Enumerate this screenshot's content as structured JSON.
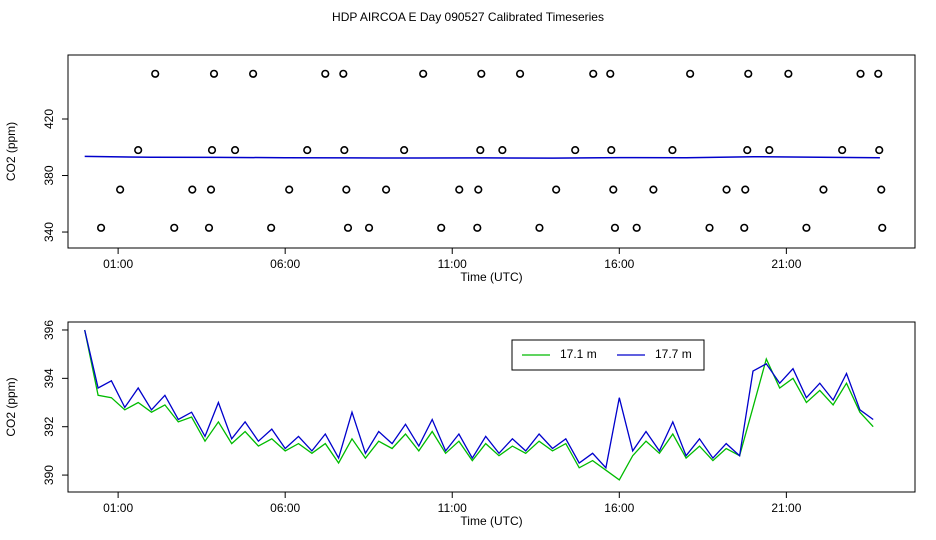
{
  "title": "HDP AIRCOA E  Day 090527  Calibrated Timeseries",
  "chart_data": [
    {
      "type": "scatter",
      "xlabel": "Time (UTC)",
      "ylabel": "CO2 (ppm)",
      "xlim": [
        -0.5,
        24.85
      ],
      "ylim": [
        328.7,
        465.3
      ],
      "xticks": [
        {
          "value": 1,
          "label": "01:00"
        },
        {
          "value": 6,
          "label": "06:00"
        },
        {
          "value": 11,
          "label": "11:00"
        },
        {
          "value": 16,
          "label": "16:00"
        },
        {
          "value": 21,
          "label": "21:00"
        }
      ],
      "yticks": [
        340,
        380,
        420
      ],
      "marker_color": "#000000",
      "x": [
        2.11,
        3.87,
        5.04,
        7.2,
        7.74,
        10.13,
        11.87,
        13.03,
        15.22,
        15.73,
        18.12,
        19.86,
        21.06,
        23.22,
        23.75,
        1.6,
        3.81,
        4.5,
        6.66,
        7.77,
        9.56,
        11.84,
        12.5,
        14.68,
        15.76,
        17.59,
        19.83,
        20.49,
        22.67,
        23.78,
        1.06,
        3.22,
        3.78,
        6.12,
        7.83,
        9.02,
        11.21,
        11.78,
        14.11,
        15.82,
        17.02,
        19.21,
        19.77,
        22.11,
        23.84,
        0.49,
        2.68,
        3.72,
        5.58,
        7.88,
        8.51,
        10.67,
        11.75,
        13.61,
        15.87,
        16.52,
        18.7,
        19.74,
        21.6,
        23.87
      ],
      "values": [
        452,
        452,
        452,
        452,
        452,
        452,
        452,
        452,
        452,
        452,
        452,
        452,
        452,
        452,
        452,
        398,
        398,
        398,
        398,
        398,
        398,
        398,
        398,
        398,
        398,
        398,
        398,
        398,
        398,
        398,
        370,
        370,
        370,
        370,
        370,
        370,
        370,
        370,
        370,
        370,
        370,
        370,
        370,
        370,
        370,
        343,
        343,
        343,
        343,
        343,
        343,
        343,
        343,
        343,
        343,
        343,
        343,
        343,
        343,
        343
      ],
      "line_color": "#0000cc",
      "line_x": [
        0,
        2,
        4,
        6,
        8,
        10,
        12,
        14,
        16,
        18,
        20,
        22,
        23.8
      ],
      "line_values": [
        393.5,
        392.9,
        392.8,
        392.6,
        392.5,
        392.4,
        392.5,
        392.3,
        392.7,
        392.6,
        393.3,
        392.9,
        392.6
      ]
    },
    {
      "type": "line",
      "xlabel": "Time (UTC)",
      "ylabel": "CO2 (ppm)",
      "xlim": [
        -0.5,
        24.85
      ],
      "ylim": [
        389.3,
        396.33
      ],
      "xticks": [
        {
          "value": 1,
          "label": "01:00"
        },
        {
          "value": 6,
          "label": "06:00"
        },
        {
          "value": 11,
          "label": "11:00"
        },
        {
          "value": 16,
          "label": "16:00"
        },
        {
          "value": 21,
          "label": "21:00"
        }
      ],
      "yticks": [
        390,
        392,
        394,
        396
      ],
      "legend": "top",
      "x": [
        0,
        0.4,
        0.8,
        1.2,
        1.6,
        2.0,
        2.4,
        2.8,
        3.2,
        3.6,
        4.0,
        4.4,
        4.8,
        5.2,
        5.6,
        6.0,
        6.4,
        6.8,
        7.2,
        7.6,
        8.0,
        8.4,
        8.8,
        9.2,
        9.6,
        10.0,
        10.4,
        10.8,
        11.2,
        11.6,
        12.0,
        12.4,
        12.8,
        13.2,
        13.6,
        14.0,
        14.4,
        14.8,
        15.2,
        15.6,
        16.0,
        16.4,
        16.8,
        17.2,
        17.6,
        18.0,
        18.4,
        18.8,
        19.2,
        19.6,
        20.0,
        20.4,
        20.8,
        21.2,
        21.6,
        22.0,
        22.4,
        22.8,
        23.2,
        23.6
      ],
      "series": [
        {
          "name": "17.1 m",
          "color": "#00bb00",
          "values": [
            396.0,
            393.3,
            393.2,
            392.7,
            393.0,
            392.6,
            392.9,
            392.2,
            392.4,
            391.4,
            392.2,
            391.3,
            391.8,
            391.2,
            391.5,
            391.0,
            391.3,
            390.9,
            391.3,
            390.5,
            391.5,
            390.7,
            391.4,
            391.1,
            391.7,
            391.0,
            391.8,
            390.9,
            391.4,
            390.6,
            391.3,
            390.8,
            391.2,
            390.9,
            391.4,
            391.0,
            391.3,
            390.3,
            390.6,
            390.2,
            389.8,
            390.8,
            391.4,
            390.9,
            391.7,
            390.7,
            391.2,
            390.6,
            391.1,
            390.8,
            392.8,
            394.8,
            393.6,
            394.0,
            393.0,
            393.5,
            392.9,
            393.8,
            392.6,
            392.0
          ]
        },
        {
          "name": "17.7 m",
          "color": "#0000cc",
          "values": [
            396.0,
            393.6,
            393.9,
            392.8,
            393.6,
            392.7,
            393.3,
            392.3,
            392.6,
            391.6,
            393.0,
            391.5,
            392.2,
            391.4,
            391.9,
            391.1,
            391.6,
            391.0,
            391.7,
            390.7,
            392.6,
            390.9,
            391.8,
            391.3,
            392.1,
            391.2,
            392.3,
            391.0,
            391.7,
            390.7,
            391.6,
            390.9,
            391.5,
            391.0,
            391.7,
            391.1,
            391.5,
            390.5,
            390.9,
            390.3,
            393.2,
            391.0,
            391.8,
            391.0,
            392.2,
            390.8,
            391.5,
            390.7,
            391.3,
            390.8,
            394.3,
            394.6,
            393.8,
            394.4,
            393.2,
            393.8,
            393.1,
            394.2,
            392.7,
            392.3
          ]
        }
      ]
    }
  ]
}
